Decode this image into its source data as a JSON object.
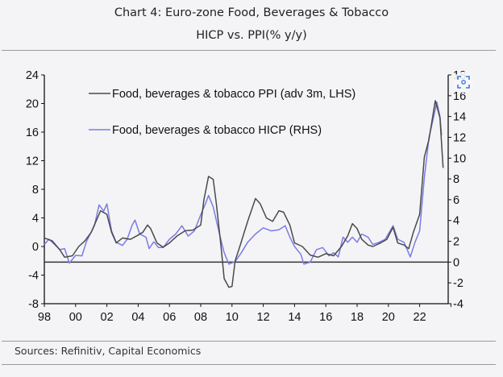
{
  "header": {
    "title_line1": "Chart 4: Euro-zone Food, Beverages & Tobacco",
    "title_line2": "HICP vs. PPI(% y/y)"
  },
  "footer": {
    "source": "Sources: Refinitiv, Capital Economics"
  },
  "chart_data": {
    "type": "line",
    "title": "Chart 4: Euro-zone Food, Beverages & Tobacco HICP vs. PPI(% y/y)",
    "legend_placement": "top-left",
    "grid": false,
    "x_axis": {
      "range": [
        1998,
        2024
      ],
      "tick_labels": [
        "98",
        "00",
        "02",
        "04",
        "06",
        "08",
        "10",
        "12",
        "14",
        "16",
        "18",
        "20",
        "22"
      ]
    },
    "y_left": {
      "range": [
        -8,
        24
      ],
      "tick_labels": [
        "24",
        "20",
        "16",
        "12",
        "8",
        "4",
        "0",
        "-4",
        "-8"
      ]
    },
    "y_right": {
      "range": [
        -4,
        18
      ],
      "tick_labels": [
        "18",
        "16",
        "14",
        "12",
        "10",
        "8",
        "6",
        "4",
        "2",
        "0",
        "-2",
        "-4"
      ],
      "zero_line": true
    },
    "series": [
      {
        "name": "Food, beverages & tobacco PPI (adv 3m, LHS)",
        "axis": "left",
        "color": "#4a4a4a",
        "x": [
          1998.0,
          1998.5,
          1999.0,
          1999.3,
          1999.8,
          2000.2,
          2000.6,
          2001.0,
          2001.3,
          2001.6,
          2002.0,
          2002.3,
          2002.6,
          2003.0,
          2003.5,
          2004.0,
          2004.3,
          2004.6,
          2004.8,
          2005.2,
          2005.6,
          2006.0,
          2006.5,
          2007.0,
          2007.5,
          2008.0,
          2008.2,
          2008.5,
          2008.8,
          2009.0,
          2009.3,
          2009.5,
          2009.8,
          2010.0,
          2010.2,
          2010.5,
          2011.0,
          2011.5,
          2011.8,
          2012.2,
          2012.6,
          2013.0,
          2013.3,
          2013.7,
          2014.0,
          2014.5,
          2015.0,
          2015.5,
          2016.0,
          2016.5,
          2017.0,
          2017.4,
          2017.7,
          2018.0,
          2018.3,
          2018.7,
          2019.0,
          2019.5,
          2019.9,
          2020.3,
          2020.6,
          2021.0,
          2021.3,
          2021.6,
          2022.0,
          2022.3,
          2022.6,
          2023.0,
          2023.3,
          2023.5
        ],
        "values": [
          1.2,
          0.8,
          -0.5,
          -1.5,
          -1.3,
          0,
          0.8,
          2.0,
          3.5,
          5.0,
          4.5,
          2.0,
          0.5,
          1.2,
          1.0,
          1.6,
          2.0,
          3.0,
          2.5,
          0.5,
          -0.1,
          0.5,
          1.5,
          2.2,
          2.3,
          3.0,
          6.5,
          9.8,
          9.4,
          6.0,
          0,
          -4.5,
          -5.7,
          -5.6,
          -2.0,
          0,
          3.5,
          6.7,
          6.0,
          4.0,
          3.5,
          5.0,
          4.8,
          3.0,
          0.5,
          0,
          -1.2,
          -1.5,
          -1.0,
          -1.3,
          0,
          1.5,
          3.2,
          2.5,
          1.0,
          0.2,
          0,
          0.5,
          1.0,
          2.7,
          0.5,
          0.2,
          -0.3,
          2.0,
          4.5,
          12.5,
          15.0,
          20.4,
          18.0,
          11.0
        ]
      },
      {
        "name": "Food, beverages & tobacco HICP (RHS)",
        "axis": "right",
        "color": "#7b7be8",
        "x": [
          1998.0,
          1998.3,
          1999.0,
          1999.3,
          1999.6,
          2000.0,
          2000.4,
          2000.7,
          2001.2,
          2001.5,
          2001.8,
          2002.0,
          2002.3,
          2002.6,
          2003.0,
          2003.3,
          2003.6,
          2003.8,
          2004.1,
          2004.5,
          2004.7,
          2005.0,
          2005.3,
          2005.6,
          2006.0,
          2006.4,
          2006.8,
          2007.2,
          2007.6,
          2008.0,
          2008.3,
          2008.5,
          2008.8,
          2009.2,
          2009.5,
          2009.8,
          2010.2,
          2010.6,
          2011.0,
          2011.5,
          2012.0,
          2012.5,
          2013.0,
          2013.4,
          2013.7,
          2014.0,
          2014.4,
          2014.6,
          2015.0,
          2015.4,
          2015.8,
          2016.2,
          2016.5,
          2016.8,
          2017.1,
          2017.4,
          2017.7,
          2018.0,
          2018.3,
          2018.7,
          2019.0,
          2019.4,
          2019.8,
          2020.3,
          2020.6,
          2021.0,
          2021.4,
          2021.7,
          2022.0,
          2022.3,
          2022.6,
          2022.9,
          2023.1,
          2023.3,
          2023.4
        ],
        "values": [
          1.7,
          2.2,
          1.2,
          1.3,
          -0.1,
          0.65,
          0.6,
          2.0,
          3.5,
          5.5,
          4.9,
          5.6,
          3.0,
          1.9,
          1.6,
          2.2,
          3.5,
          4.05,
          2.7,
          2.4,
          1.3,
          1.95,
          1.4,
          1.4,
          2.2,
          2.7,
          3.5,
          2.5,
          3.0,
          4.55,
          5.6,
          6.4,
          5.3,
          2.7,
          0.9,
          -0.2,
          0.05,
          0.9,
          1.9,
          2.7,
          3.3,
          3.0,
          3.1,
          3.5,
          2.4,
          1.5,
          0.75,
          -0.2,
          0,
          1.2,
          1.4,
          0.6,
          0.9,
          0.5,
          2.4,
          1.9,
          2.4,
          1.9,
          2.7,
          2.4,
          1.7,
          1.9,
          2.2,
          3.5,
          2.2,
          1.9,
          0.5,
          1.9,
          3.0,
          8.1,
          12.0,
          14.0,
          15.4,
          14.0,
          12.2
        ]
      }
    ]
  },
  "overlay": {
    "icon": "scan-icon"
  }
}
